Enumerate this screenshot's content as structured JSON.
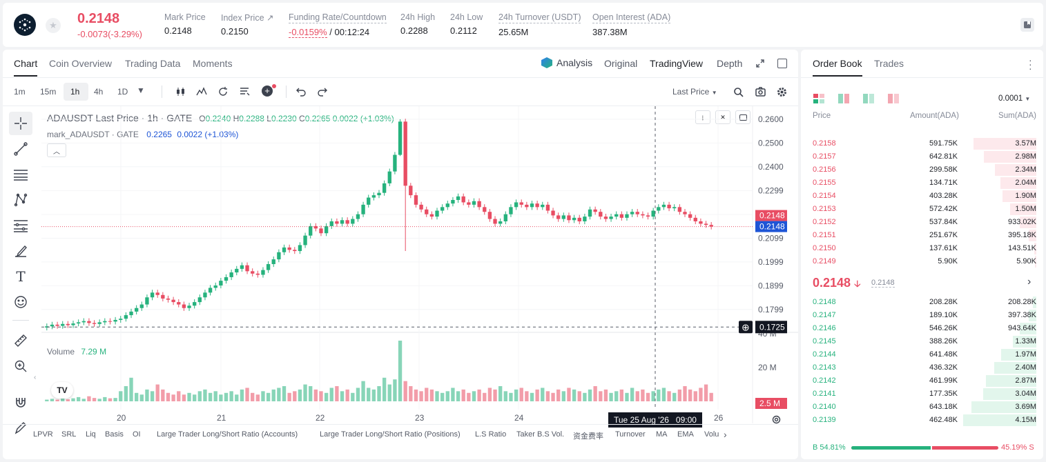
{
  "header": {
    "price": "0.2148",
    "change": "-0.0073(-3.29%)",
    "stats": [
      {
        "label": "Mark Price",
        "value": "0.2148"
      },
      {
        "label": "Index Price ↗",
        "value": "0.2150"
      },
      {
        "label": "Funding Rate/Countdown",
        "value_red": "-0.0159%",
        "value": "/ 00:12:24"
      },
      {
        "label": "24h High",
        "value": "0.2288"
      },
      {
        "label": "24h Low",
        "value": "0.2112"
      },
      {
        "label": "24h Turnover (USDT)",
        "value": "25.65M"
      },
      {
        "label": "Open Interest (ADA)",
        "value": "387.38M"
      }
    ]
  },
  "chart_tabs": [
    "Chart",
    "Coin Overview",
    "Trading Data",
    "Moments"
  ],
  "view_tabs": {
    "analysis": "Analysis",
    "original": "Original",
    "tradingview": "TradingView",
    "depth": "Depth"
  },
  "intervals": [
    "1m",
    "15m",
    "1h",
    "4h",
    "1D"
  ],
  "price_type": "Last Price",
  "legend": {
    "title": "ADAUSDT Last Price · 1h · GATE",
    "o": "0.2240",
    "h": "0.2288",
    "l": "0.2230",
    "c": "0.2265",
    "chg": "0.0022 (+1.03%)",
    "mark": "mark_ADAUSDT · GATE",
    "mark_val": "0.2265",
    "mark_chg": "0.0022 (+1.03%)",
    "vol_label": "Volume",
    "vol_val": "7.29 M"
  },
  "price_labels": {
    "last_red": "0.2148",
    "last_blue": "0.2148",
    "cross": "0.1725",
    "vol_red": "2.5 M"
  },
  "crosshair_time": "Tue 25 Aug '26   09:00",
  "bottom_indicators": [
    "LPVR",
    "SRL",
    "Liq",
    "Basis",
    "OI",
    "Large Trader Long/Short Ratio (Accounts)",
    "Large Trader Long/Short Ratio (Positions)",
    "L.S Ratio",
    "Taker B.S Vol.",
    "资金费率",
    "Turnover",
    "MA",
    "EMA",
    "Volu"
  ],
  "colors": {
    "up": "#26b27d",
    "down": "#e84d63",
    "blue": "#1e55d6"
  },
  "chart_data": {
    "type": "candlestick",
    "y_axis": {
      "ticks": [
        "0.2600",
        "0.2500",
        "0.2400",
        "0.2299",
        "0.2199",
        "0.2099",
        "0.1999",
        "0.1899",
        "0.1799"
      ],
      "range": [
        0.172,
        0.262
      ]
    },
    "x_axis": {
      "ticks": [
        "20",
        "21",
        "22",
        "23",
        "24",
        "26"
      ]
    },
    "volume_axis": {
      "ticks": [
        "40 M",
        "20 M"
      ]
    },
    "candles_close": [
      0.1728,
      0.1735,
      0.173,
      0.1738,
      0.1733,
      0.174,
      0.1745,
      0.175,
      0.1742,
      0.1738,
      0.1745,
      0.175,
      0.1748,
      0.1755,
      0.176,
      0.1775,
      0.179,
      0.1805,
      0.182,
      0.185,
      0.187,
      0.186,
      0.1845,
      0.184,
      0.183,
      0.182,
      0.1805,
      0.1815,
      0.183,
      0.185,
      0.187,
      0.189,
      0.19,
      0.192,
      0.1935,
      0.1955,
      0.197,
      0.1985,
      0.196,
      0.195,
      0.1945,
      0.1965,
      0.199,
      0.201,
      0.204,
      0.206,
      0.205,
      0.2045,
      0.207,
      0.211,
      0.215,
      0.214,
      0.212,
      0.215,
      0.217,
      0.216,
      0.2175,
      0.216,
      0.218,
      0.22,
      0.224,
      0.227,
      0.228,
      0.229,
      0.233,
      0.238,
      0.245,
      0.259,
      0.232,
      0.228,
      0.224,
      0.222,
      0.22,
      0.219,
      0.2215,
      0.223,
      0.2245,
      0.226,
      0.2275,
      0.225,
      0.224,
      0.2255,
      0.223,
      0.221,
      0.218,
      0.216,
      0.217,
      0.22,
      0.223,
      0.225,
      0.224,
      0.223,
      0.2245,
      0.223,
      0.224,
      0.2215,
      0.2195,
      0.218,
      0.2195,
      0.2175,
      0.2185,
      0.217,
      0.219,
      0.222,
      0.221,
      0.219,
      0.218,
      0.219,
      0.22,
      0.2185,
      0.22,
      0.221,
      0.22,
      0.2195,
      0.219,
      0.2215,
      0.223,
      0.224,
      0.2225,
      0.223,
      0.221,
      0.22,
      0.2185,
      0.217,
      0.216,
      0.2155,
      0.2148
    ],
    "volume_m": [
      1,
      1.5,
      1,
      2,
      1.2,
      1.8,
      2.5,
      1.5,
      3,
      2,
      1.5,
      2.5,
      1.8,
      2,
      6,
      9,
      14,
      5,
      4,
      7,
      6,
      10,
      7,
      5,
      4,
      6,
      4,
      5,
      4,
      6,
      7,
      5,
      6,
      4,
      5,
      6,
      4,
      7,
      8,
      5,
      4,
      6,
      5,
      7,
      8,
      9,
      5,
      6,
      7,
      10,
      9,
      7,
      6,
      5,
      8,
      9,
      6,
      7,
      5,
      8,
      12,
      8,
      7,
      9,
      14,
      10,
      13,
      36,
      12,
      9,
      7,
      6,
      8,
      7,
      6,
      5,
      6,
      8,
      6,
      7,
      5,
      6,
      7,
      5,
      8,
      7,
      9,
      6,
      5,
      7,
      8,
      6,
      5,
      7,
      8,
      6,
      5,
      7,
      6,
      8,
      7,
      6,
      5,
      7,
      9,
      6,
      7,
      5,
      6,
      7,
      5,
      8,
      6,
      7,
      5,
      6,
      7,
      8,
      6,
      5,
      7,
      9,
      7,
      6,
      8,
      10,
      5,
      2.5
    ]
  },
  "orderbook": {
    "tabs": [
      "Order Book",
      "Trades"
    ],
    "precision": "0.0001",
    "headers": [
      "Price",
      "Amount(ADA)",
      "Sum(ADA)"
    ],
    "asks": [
      [
        "0.2158",
        "591.75K",
        "3.57M",
        0.86
      ],
      [
        "0.2157",
        "642.81K",
        "2.98M",
        0.72
      ],
      [
        "0.2156",
        "299.58K",
        "2.34M",
        0.57
      ],
      [
        "0.2155",
        "134.71K",
        "2.04M",
        0.49
      ],
      [
        "0.2154",
        "403.28K",
        "1.90M",
        0.46
      ],
      [
        "0.2153",
        "572.42K",
        "1.50M",
        0.36
      ],
      [
        "0.2152",
        "537.84K",
        "933.02K",
        0.23
      ],
      [
        "0.2151",
        "251.67K",
        "395.18K",
        0.1
      ],
      [
        "0.2150",
        "137.61K",
        "143.51K",
        0.03
      ],
      [
        "0.2149",
        "5.90K",
        "5.90K",
        0.0
      ]
    ],
    "mid": {
      "price": "0.2148",
      "mark": "0.2148"
    },
    "bids": [
      [
        "0.2148",
        "208.28K",
        "208.28K",
        0.05
      ],
      [
        "0.2147",
        "189.10K",
        "397.38K",
        0.1
      ],
      [
        "0.2146",
        "546.26K",
        "943.64K",
        0.23
      ],
      [
        "0.2145",
        "388.26K",
        "1.33M",
        0.32
      ],
      [
        "0.2144",
        "641.48K",
        "1.97M",
        0.48
      ],
      [
        "0.2143",
        "436.32K",
        "2.40M",
        0.58
      ],
      [
        "0.2142",
        "461.99K",
        "2.87M",
        0.69
      ],
      [
        "0.2141",
        "177.35K",
        "3.04M",
        0.73
      ],
      [
        "0.2140",
        "643.18K",
        "3.69M",
        0.89
      ],
      [
        "0.2139",
        "462.48K",
        "4.15M",
        1.0
      ]
    ],
    "ratio": {
      "buy": "B 54.81%",
      "sell": "45.19% S",
      "buy_frac": 0.5481
    }
  }
}
